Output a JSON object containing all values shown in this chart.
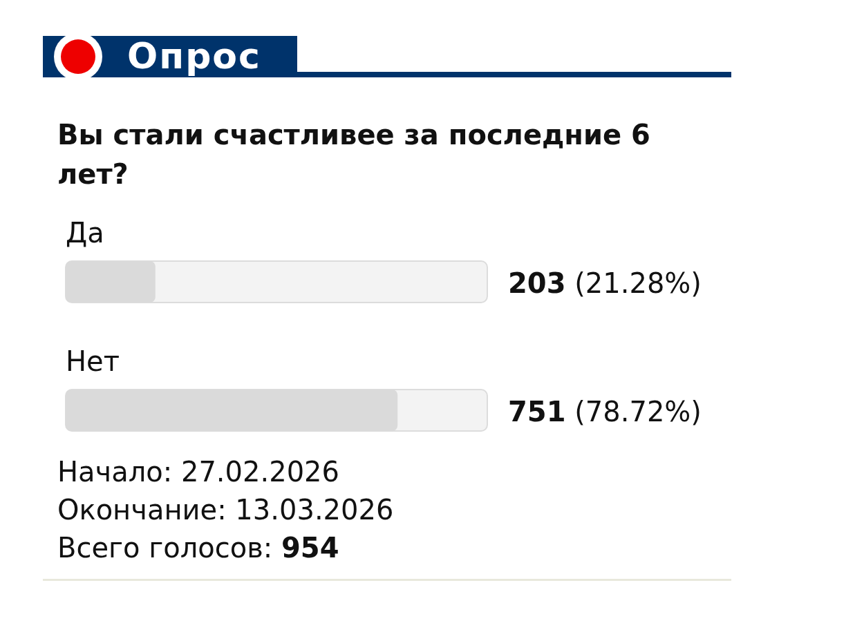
{
  "chart_data": {
    "type": "bar",
    "orientation": "horizontal",
    "title": "Опрос",
    "subtitle": "Вы стали счастливее за последние 6 лет?",
    "categories": [
      "Да",
      "Нет"
    ],
    "values": [
      203,
      751
    ],
    "value_labels": [
      "203 (21.28%)",
      "751 (78.72%)"
    ],
    "color": "#dadada",
    "xlim": [
      0,
      954
    ],
    "tick_labels": "y",
    "annotations": [
      "Начало: 27.02.2026",
      "Окончание: 13.03.2026",
      "Всего голосов: 954"
    ]
  }
}
